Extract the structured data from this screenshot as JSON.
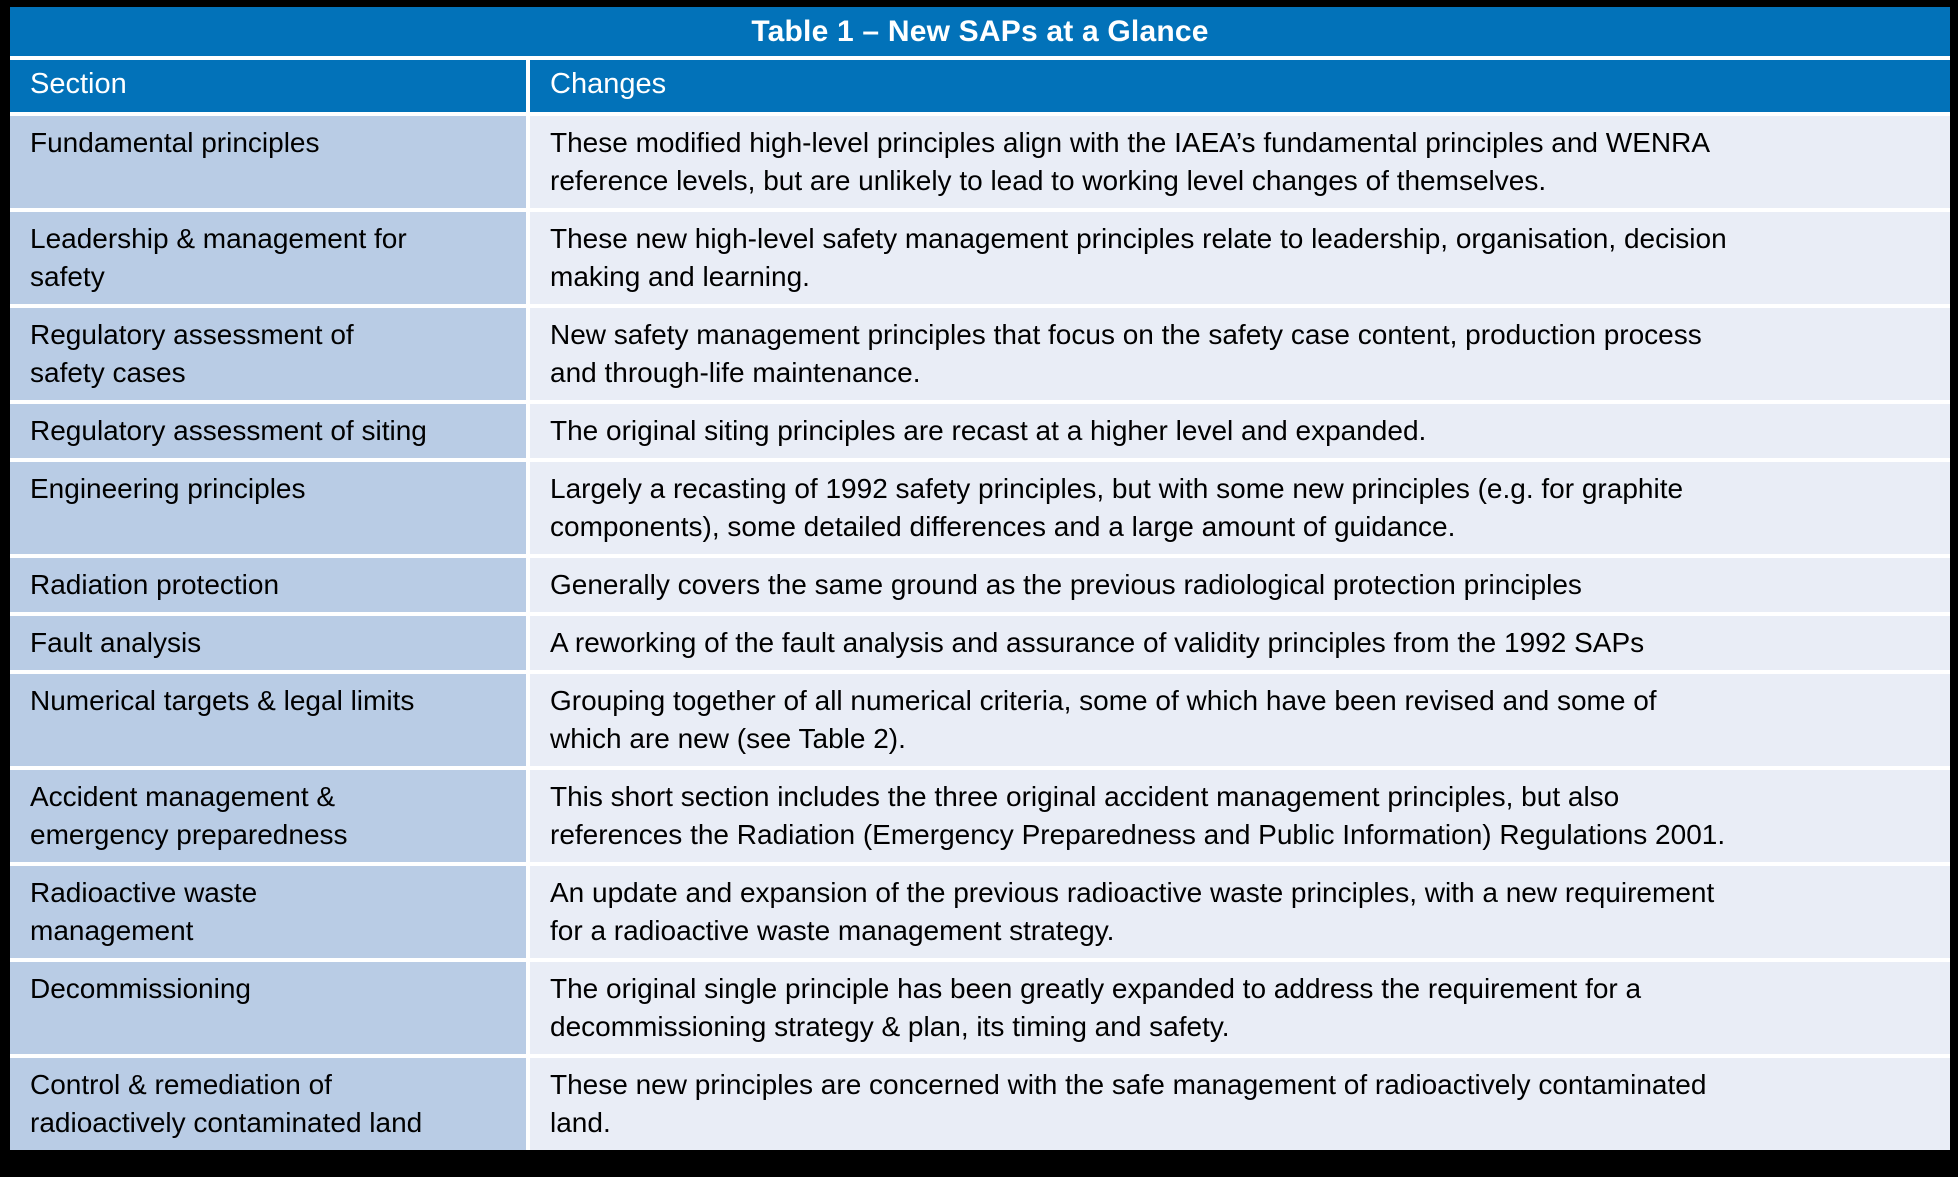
{
  "title": "Table 1 – New SAPs at a Glance",
  "columns": {
    "section": "Section",
    "changes": "Changes"
  },
  "rows": [
    {
      "section": "Fundamental principles",
      "changes": "These modified high-level principles align with the IAEA’s fundamental principles and WENRA\nreference levels, but are unlikely to lead to working level changes of themselves."
    },
    {
      "section": "Leadership & management for\nsafety",
      "changes": "These new high-level safety management principles relate to leadership, organisation, decision\nmaking and learning."
    },
    {
      "section": "Regulatory assessment of\nsafety cases",
      "changes": "New safety management principles that focus on the safety case content, production process\nand through-life maintenance."
    },
    {
      "section": "Regulatory assessment of siting",
      "changes": "The original siting principles are recast at a higher level and expanded."
    },
    {
      "section": "Engineering principles",
      "changes": "Largely a recasting of 1992 safety principles, but with some new principles (e.g. for graphite\ncomponents), some detailed differences and a large amount of guidance."
    },
    {
      "section": "Radiation protection",
      "changes": "Generally covers the same ground as the previous radiological protection principles"
    },
    {
      "section": "Fault analysis",
      "changes": "A reworking of the fault analysis and assurance of validity principles from the 1992 SAPs"
    },
    {
      "section": "Numerical targets & legal limits",
      "changes": "Grouping together of all numerical criteria, some of which have been revised and some of\nwhich are new (see Table 2)."
    },
    {
      "section": "Accident management &\nemergency preparedness",
      "changes": "This short section includes the three original accident management principles, but also\nreferences the Radiation (Emergency Preparedness and Public Information) Regulations 2001."
    },
    {
      "section": "Radioactive waste\nmanagement",
      "changes": "An update and expansion of the previous radioactive waste principles, with a new requirement\nfor a radioactive waste management strategy."
    },
    {
      "section": "Decommissioning",
      "changes": "The original single principle has been greatly expanded to address the requirement for a\ndecommissioning strategy & plan, its timing and safety."
    },
    {
      "section": "Control & remediation of\nradioactively contaminated land",
      "changes": "These new principles are concerned with the safe management of radioactively contaminated\nland."
    }
  ],
  "colors": {
    "header-blue": "#0272b9",
    "section-bg": "#b9cce5",
    "changes-bg": "#e9edf6",
    "grid-white": "#ffffff",
    "frame-black": "#000000",
    "text-black": "#000000"
  }
}
